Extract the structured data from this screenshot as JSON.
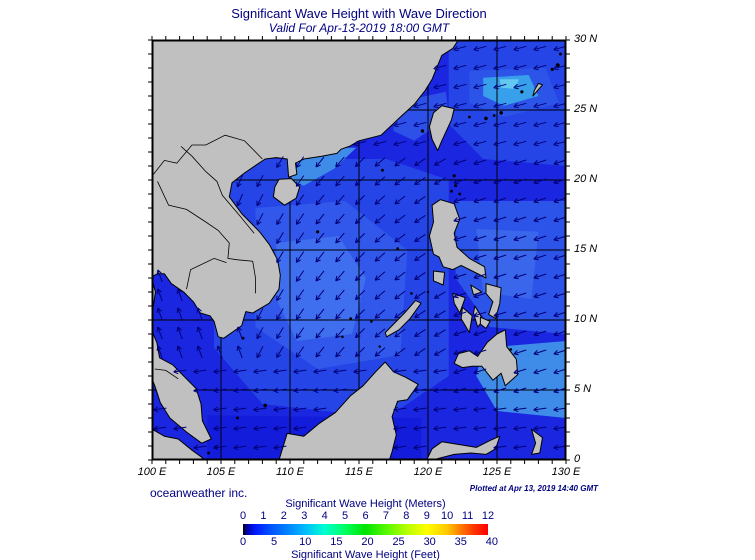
{
  "title": "Significant Wave Height with Wave Direction",
  "subtitle": "Valid For Apr-13-2019 18:00 GMT",
  "credit_left": "oceanweather inc.",
  "credit_right": "Plotted at Apr 13, 2019 14:40 GMT",
  "axes": {
    "longitude_labels": [
      "100 E",
      "105 E",
      "110 E",
      "115 E",
      "120 E",
      "125 E",
      "130 E"
    ],
    "longitude_values": [
      100,
      105,
      110,
      115,
      120,
      125,
      130
    ],
    "latitude_labels": [
      "30 N",
      "25 N",
      "20 N",
      "15 N",
      "10 N",
      "5 N",
      "0"
    ],
    "latitude_values": [
      30,
      25,
      20,
      15,
      10,
      5,
      0
    ],
    "lon_range": [
      100,
      130
    ],
    "lat_range": [
      0,
      30
    ]
  },
  "colorbar": {
    "title_meters": "Significant Wave Height (Meters)",
    "title_feet": "Significant Wave Height (Feet)",
    "meters_ticks": [
      0,
      1,
      2,
      3,
      4,
      5,
      6,
      7,
      8,
      9,
      10,
      11,
      12
    ],
    "feet_ticks": [
      0,
      5,
      10,
      15,
      20,
      25,
      30,
      35,
      40
    ],
    "meters_range": [
      0,
      12
    ],
    "gradient_stops": [
      [
        "#000000",
        0
      ],
      [
        "#0000a0",
        1.5
      ],
      [
        "#0018ff",
        5
      ],
      [
        "#0048ff",
        10
      ],
      [
        "#0078ff",
        16.7
      ],
      [
        "#00b8ff",
        25
      ],
      [
        "#00ffd0",
        33.3
      ],
      [
        "#00ff60",
        41.7
      ],
      [
        "#00e400",
        50
      ],
      [
        "#55f800",
        58.3
      ],
      [
        "#b4ff00",
        66.7
      ],
      [
        "#ffff00",
        75
      ],
      [
        "#ffc800",
        83.3
      ],
      [
        "#ff7800",
        89
      ],
      [
        "#ff3800",
        94
      ],
      [
        "#ff0000",
        100
      ]
    ]
  },
  "colors": {
    "title_text": "#000080",
    "land": "#c0c0c0",
    "coastline": "#000000",
    "ocean_base": "#1b26e0",
    "grid": "#000000",
    "arrow": "#000078"
  }
}
